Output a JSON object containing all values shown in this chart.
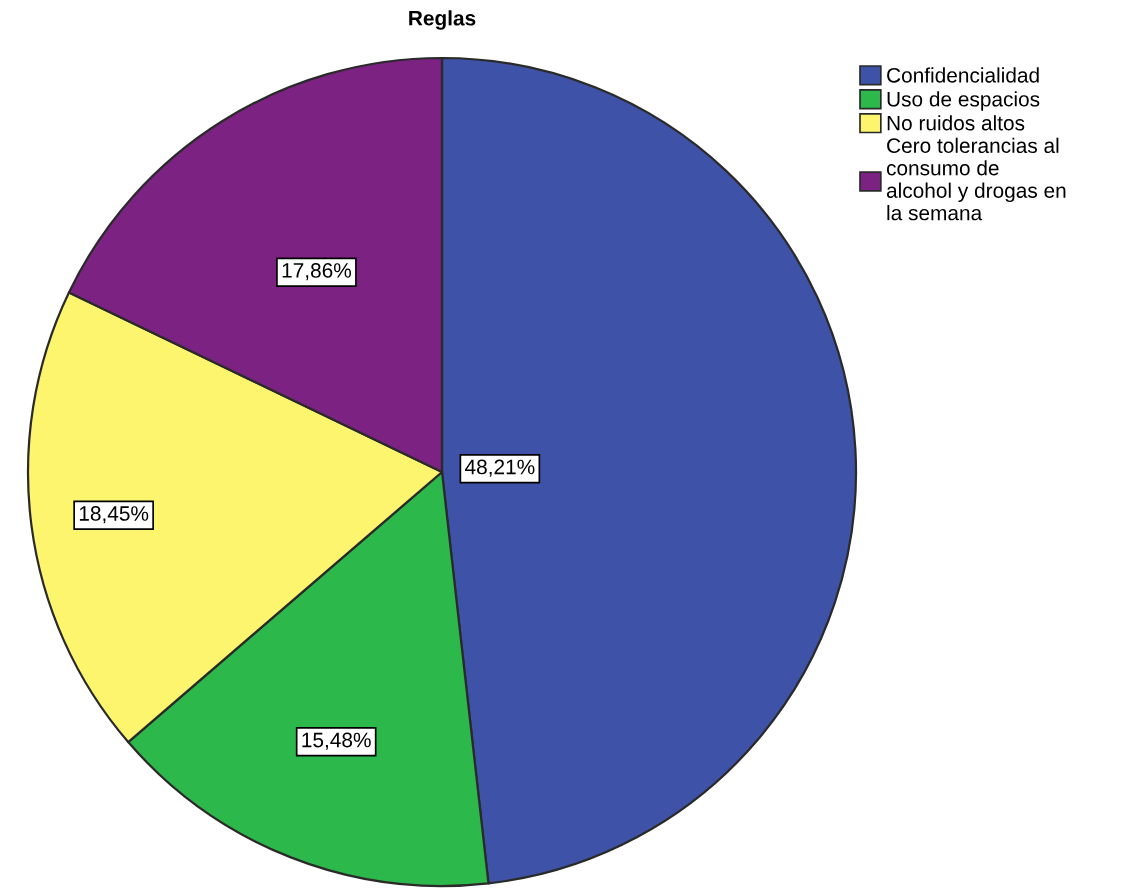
{
  "chart_data": {
    "type": "pie",
    "title": "Reglas",
    "categories": [
      "Confidencialidad",
      "Uso de espacios",
      "No ruidos altos",
      "Cero tolerancias al\nconsumo de\nalcohol y drogas en\nla semana"
    ],
    "values": [
      48.21,
      15.48,
      18.45,
      17.86
    ],
    "value_labels": [
      "48,21%",
      "15,48%",
      "18,45%",
      "17,86%"
    ],
    "colors": [
      "#3e53a8",
      "#2db84b",
      "#fdf56d",
      "#7c2283"
    ],
    "legend": "top right"
  }
}
